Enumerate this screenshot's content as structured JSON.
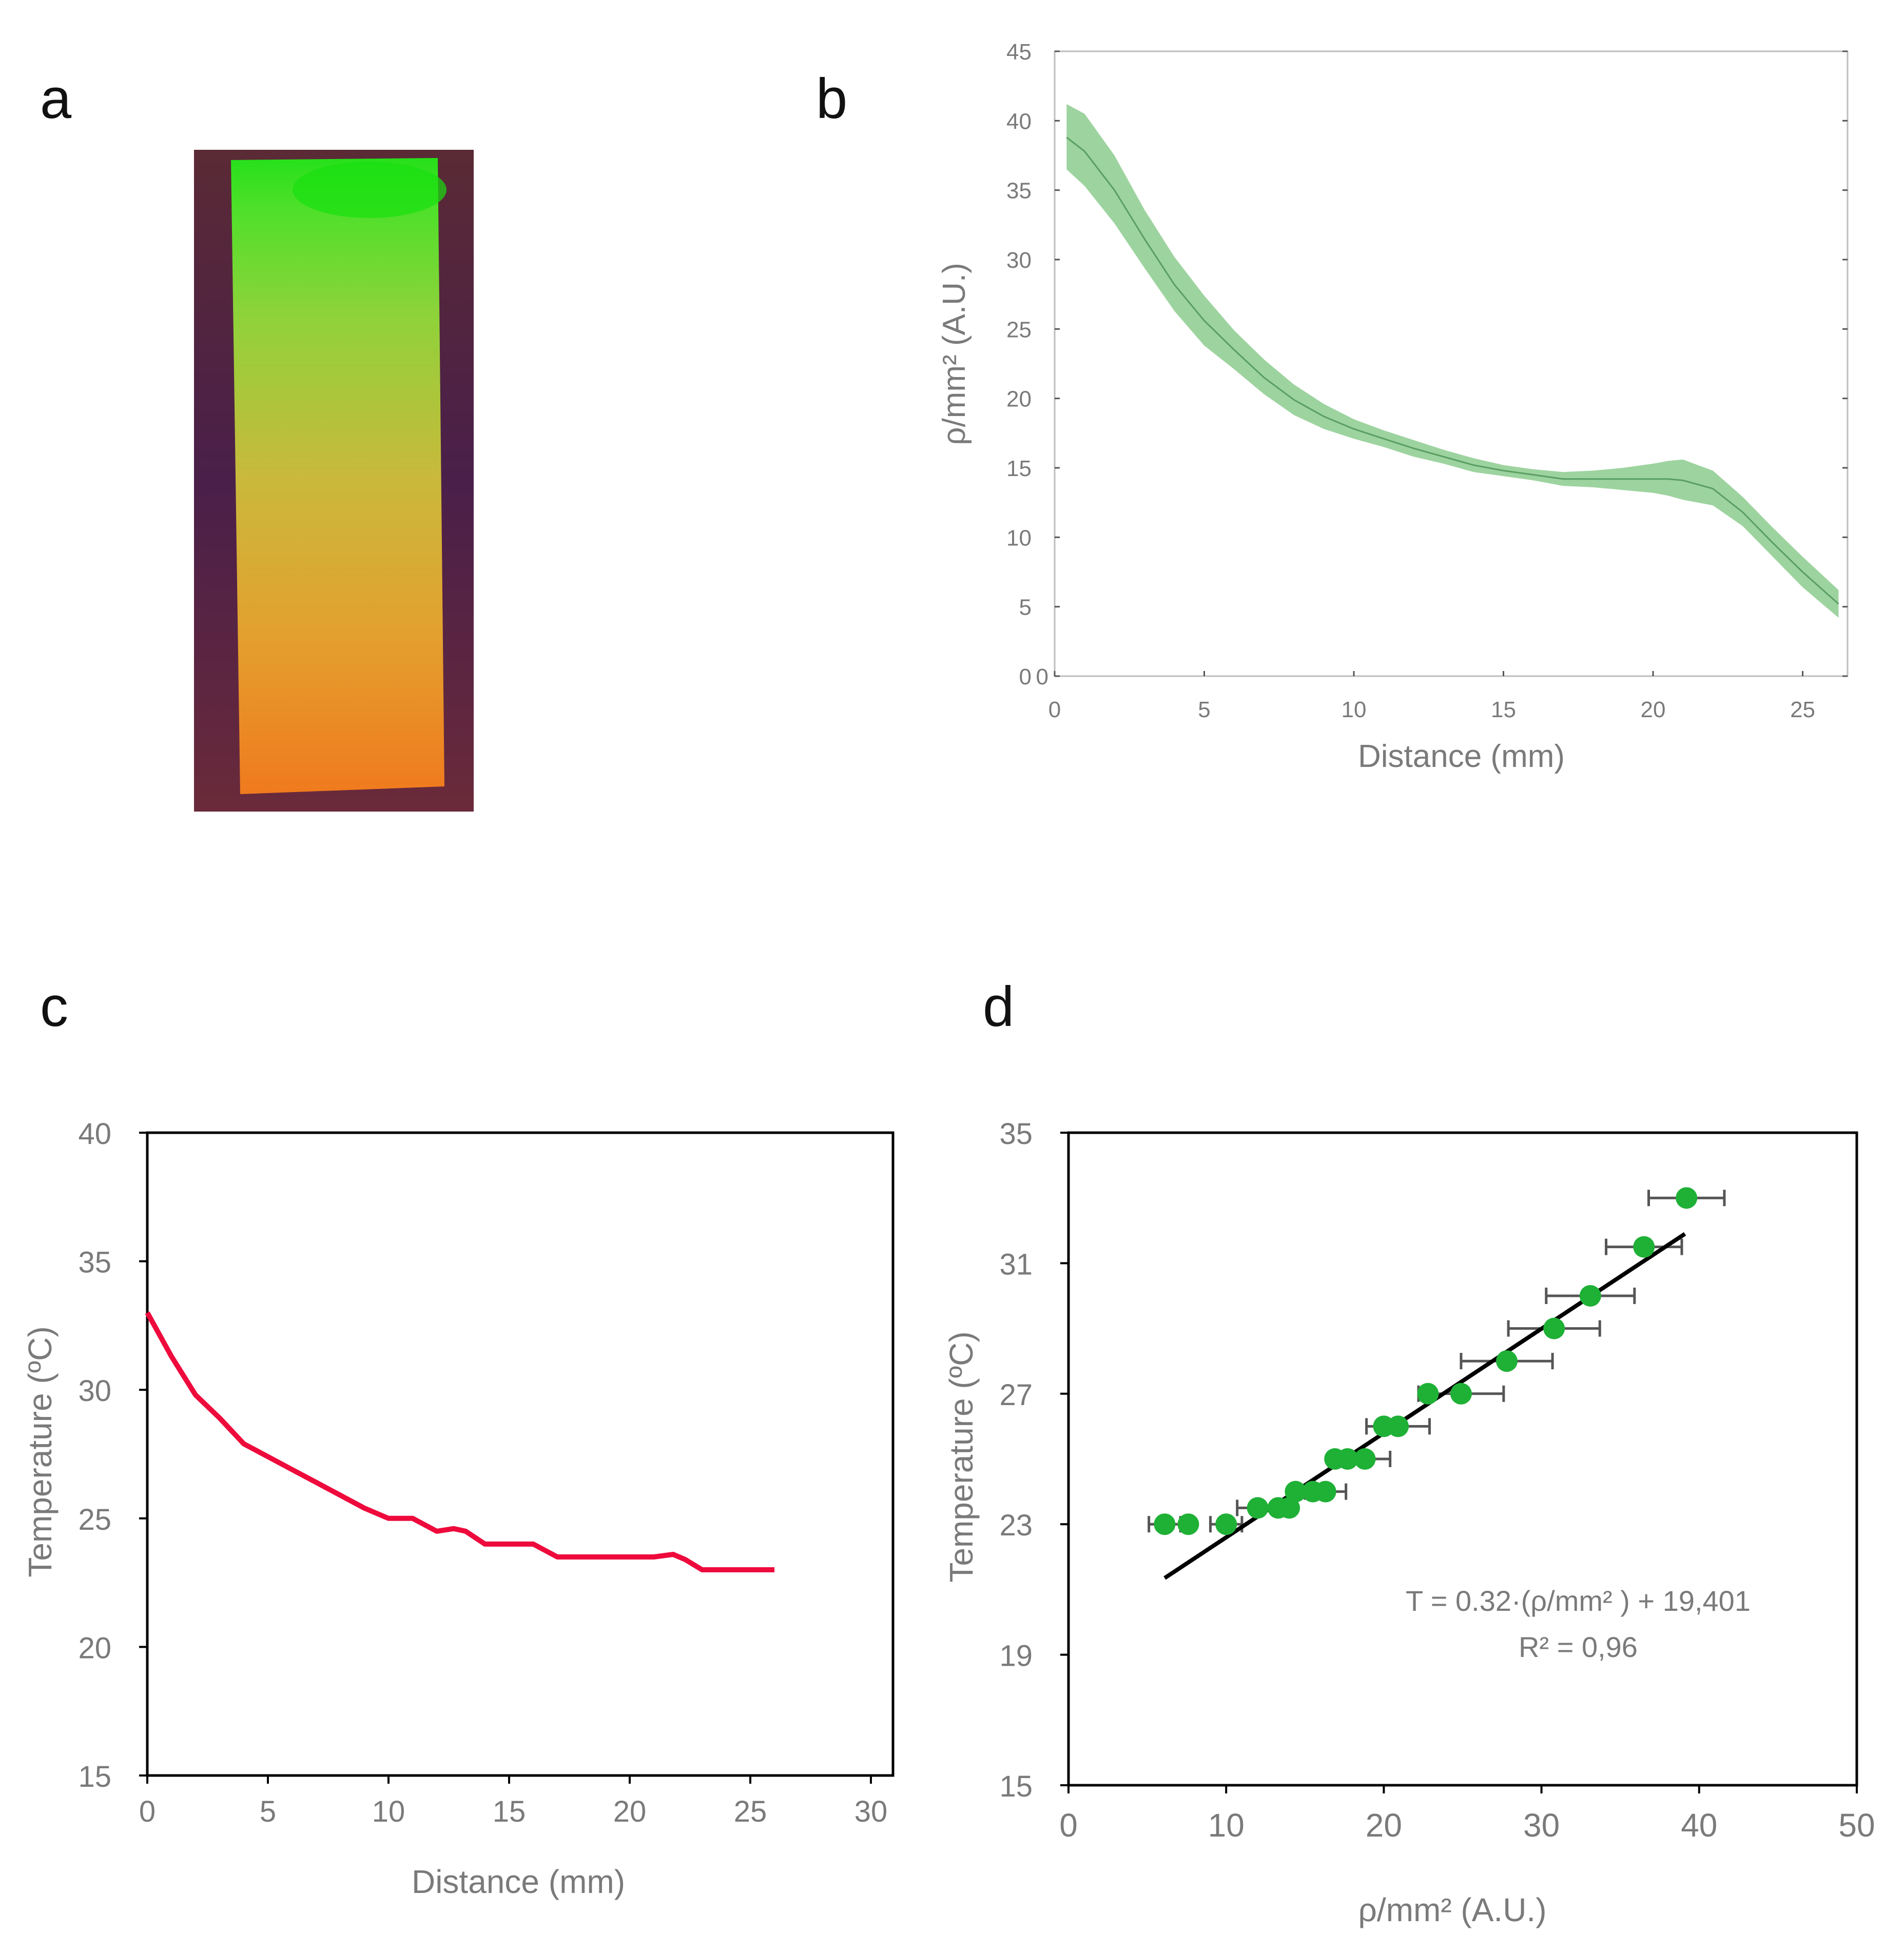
{
  "panels": {
    "a": "a",
    "b": "b",
    "c": "c",
    "d": "d"
  },
  "colors": {
    "green": "#7cc47f",
    "green_line": "#5a9e62",
    "red": "#ee0a3c",
    "dot": "#1fb036",
    "err": "#555555",
    "fit": "#000000"
  },
  "photo": {
    "name": "fluorescent-strip-photo",
    "description_icon": "gradient-strip"
  },
  "chart_data": [
    {
      "id": "b",
      "type": "area",
      "title": "",
      "xlabel": "Distance (mm)",
      "ylabel": "ρ/mm² (A.U.)",
      "xlim": [
        0,
        26.5
      ],
      "ylim": [
        0,
        45
      ],
      "xticks": [
        "0",
        "5",
        "10",
        "15",
        "20",
        "25"
      ],
      "xtick_values": [
        0,
        5,
        10,
        15,
        20,
        25
      ],
      "yticks": [
        "0",
        "5",
        "10",
        "15",
        "20",
        "25",
        "30",
        "35",
        "40",
        "45"
      ],
      "ytick_values": [
        0,
        5,
        10,
        15,
        20,
        25,
        30,
        35,
        40,
        45
      ],
      "x": [
        0.4,
        1,
        2,
        3,
        4,
        5,
        6,
        7,
        8,
        9,
        10,
        11,
        12,
        13,
        14,
        15,
        16,
        17,
        18,
        19,
        20,
        20.5,
        21,
        22,
        23,
        24,
        25,
        26.2
      ],
      "mean": [
        38.8,
        37.8,
        35.0,
        31.5,
        28.2,
        25.6,
        23.5,
        21.5,
        19.9,
        18.7,
        17.8,
        17.1,
        16.4,
        15.8,
        15.2,
        14.8,
        14.5,
        14.2,
        14.2,
        14.2,
        14.2,
        14.2,
        14.1,
        13.5,
        11.8,
        9.6,
        7.5,
        5.2
      ],
      "upper": [
        41.2,
        40.5,
        37.5,
        33.6,
        30.2,
        27.4,
        24.9,
        22.8,
        21.0,
        19.6,
        18.5,
        17.7,
        17.0,
        16.3,
        15.7,
        15.2,
        14.9,
        14.7,
        14.8,
        15.0,
        15.3,
        15.5,
        15.6,
        14.8,
        12.9,
        10.7,
        8.6,
        6.2
      ],
      "lower": [
        36.5,
        35.3,
        32.6,
        29.4,
        26.3,
        23.8,
        22.1,
        20.3,
        18.8,
        17.8,
        17.1,
        16.5,
        15.8,
        15.3,
        14.7,
        14.4,
        14.1,
        13.7,
        13.6,
        13.4,
        13.2,
        13.0,
        12.7,
        12.3,
        10.8,
        8.6,
        6.4,
        4.2
      ]
    },
    {
      "id": "c",
      "type": "line",
      "title": "",
      "xlabel": "Distance (mm)",
      "ylabel": "Temperature (ºC)",
      "xlim": [
        0,
        30
      ],
      "ylim": [
        15,
        40
      ],
      "xticks": [
        "0",
        "5",
        "10",
        "15",
        "20",
        "25",
        "30"
      ],
      "xtick_values": [
        0,
        5,
        10,
        15,
        20,
        25,
        30
      ],
      "yticks": [
        "15",
        "20",
        "25",
        "30",
        "35",
        "40"
      ],
      "ytick_values": [
        15,
        20,
        25,
        30,
        35,
        40
      ],
      "x": [
        0,
        1,
        2,
        3,
        4,
        5,
        6,
        7,
        8,
        9,
        10,
        11,
        12,
        12.7,
        13.2,
        14,
        15,
        16,
        17,
        18,
        19,
        20,
        21,
        21.8,
        22.3,
        23,
        24,
        25,
        26
      ],
      "y": [
        33.0,
        31.3,
        29.8,
        28.9,
        27.9,
        27.4,
        26.9,
        26.4,
        25.9,
        25.4,
        25.0,
        25.0,
        24.5,
        24.6,
        24.5,
        24.0,
        24.0,
        24.0,
        23.5,
        23.5,
        23.5,
        23.5,
        23.5,
        23.6,
        23.4,
        23.0,
        23.0,
        23.0,
        23.0
      ]
    },
    {
      "id": "d",
      "type": "scatter",
      "title": "",
      "xlabel": "ρ/mm² (A.U.)",
      "ylabel": "Temperature (ºC)",
      "xlim": [
        0,
        50
      ],
      "ylim": [
        15,
        35
      ],
      "xticks": [
        "0",
        "10",
        "20",
        "30",
        "40",
        "50"
      ],
      "xtick_values": [
        0,
        10,
        20,
        30,
        40,
        50
      ],
      "yticks": [
        "15",
        "19",
        "23",
        "27",
        "31",
        "35"
      ],
      "ytick_values": [
        15,
        19,
        23,
        27,
        31,
        35
      ],
      "points": [
        {
          "x": 39.2,
          "y": 33.0,
          "err": 2.4
        },
        {
          "x": 36.5,
          "y": 31.5,
          "err": 2.4
        },
        {
          "x": 33.1,
          "y": 30.0,
          "err": 2.8
        },
        {
          "x": 30.8,
          "y": 29.0,
          "err": 2.9
        },
        {
          "x": 27.8,
          "y": 28.0,
          "err": 2.9
        },
        {
          "x": 24.9,
          "y": 27.0,
          "err": 2.7
        },
        {
          "x": 22.8,
          "y": 27.0,
          "err": 0
        },
        {
          "x": 20.9,
          "y": 26.0,
          "err": 2.0
        },
        {
          "x": 20.0,
          "y": 26.0,
          "err": 0
        },
        {
          "x": 18.8,
          "y": 25.0,
          "err": 1.6
        },
        {
          "x": 17.7,
          "y": 25.0,
          "err": 0
        },
        {
          "x": 16.9,
          "y": 25.0,
          "err": 0
        },
        {
          "x": 16.3,
          "y": 24.0,
          "err": 1.3
        },
        {
          "x": 15.5,
          "y": 24.0,
          "err": 0
        },
        {
          "x": 14.4,
          "y": 24.0,
          "err": 0
        },
        {
          "x": 14.0,
          "y": 23.5,
          "err": 0
        },
        {
          "x": 13.3,
          "y": 23.5,
          "err": 0
        },
        {
          "x": 12.0,
          "y": 23.5,
          "err": 1.3
        },
        {
          "x": 10.0,
          "y": 23.0,
          "err": 1.0
        },
        {
          "x": 7.6,
          "y": 23.0,
          "err": 0
        },
        {
          "x": 6.1,
          "y": 23.0,
          "err": 1.0
        }
      ],
      "fit": {
        "x1": 6.1,
        "y1": 21.35,
        "x2": 39.1,
        "y2": 31.9
      },
      "equation": "T = 0.32·(ρ/mm² ) + 19,401",
      "r2": "R² = 0,96"
    }
  ]
}
